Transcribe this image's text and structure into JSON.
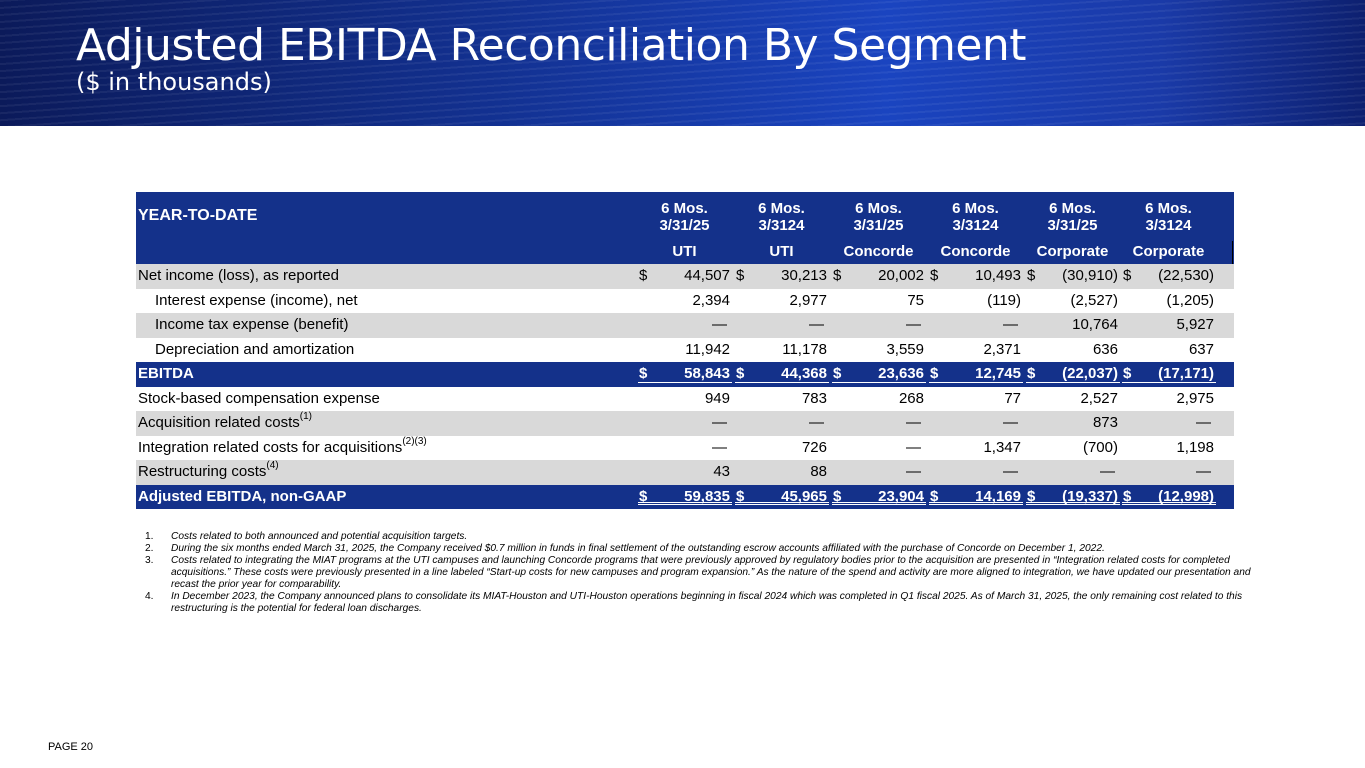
{
  "header": {
    "title": "Adjusted EBITDA Reconciliation By Segment",
    "subtitle": "($ in thousands)"
  },
  "table": {
    "section_label": "YEAR-TO-DATE",
    "columns": [
      {
        "period": "6 Mos.",
        "date": "3/31/25",
        "segment": "UTI"
      },
      {
        "period": "6 Mos.",
        "date": "3/3124",
        "segment": "UTI"
      },
      {
        "period": "6 Mos.",
        "date": "3/31/25",
        "segment": "Concorde"
      },
      {
        "period": "6 Mos.",
        "date": "3/3124",
        "segment": "Concorde"
      },
      {
        "period": "6 Mos.",
        "date": "3/31/25",
        "segment": "Corporate"
      },
      {
        "period": "6 Mos.",
        "date": "3/3124",
        "segment": "Corporate"
      }
    ],
    "rows": [
      {
        "label": "Net income (loss), as reported",
        "sup": "",
        "currency": "$",
        "values": [
          "44,507",
          "30,213",
          "20,002",
          "10,493",
          "(30,910)",
          "(22,530)"
        ]
      },
      {
        "label": "Interest expense (income), net",
        "sup": "",
        "currency": "",
        "values": [
          "2,394",
          "2,977",
          "75",
          "(119)",
          "(2,527)",
          "(1,205)"
        ]
      },
      {
        "label": "Income tax expense (benefit)",
        "sup": "",
        "currency": "",
        "values": [
          "—",
          "—",
          "—",
          "—",
          "10,764",
          "5,927"
        ]
      },
      {
        "label": "Depreciation and amortization",
        "sup": "",
        "currency": "",
        "values": [
          "11,942",
          "11,178",
          "3,559",
          "2,371",
          "636",
          "637"
        ]
      },
      {
        "label": "EBITDA",
        "sup": "",
        "currency": "$",
        "values": [
          "58,843",
          "44,368",
          "23,636",
          "12,745",
          "(22,037)",
          "(17,171)"
        ]
      },
      {
        "label": "Stock-based compensation expense",
        "sup": "",
        "currency": "",
        "values": [
          "949",
          "783",
          "268",
          "77",
          "2,527",
          "2,975"
        ]
      },
      {
        "label": "Acquisition related costs",
        "sup": "(1)",
        "currency": "",
        "values": [
          "—",
          "—",
          "—",
          "—",
          "873",
          "—"
        ]
      },
      {
        "label": "Integration related costs for acquisitions",
        "sup": "(2)(3)",
        "currency": "",
        "values": [
          "—",
          "726",
          "—",
          "1,347",
          "(700)",
          "1,198"
        ]
      },
      {
        "label": "Restructuring costs",
        "sup": "(4)",
        "currency": "",
        "values": [
          "43",
          "88",
          "—",
          "—",
          "—",
          "—"
        ]
      },
      {
        "label": "Adjusted EBITDA, non-GAAP",
        "sup": "",
        "currency": "$",
        "values": [
          "59,835",
          "45,965",
          "23,904",
          "14,169",
          "(19,337)",
          "(12,998)"
        ]
      }
    ]
  },
  "footnotes": [
    {
      "num": "1.",
      "text": "Costs related to both announced and potential acquisition targets."
    },
    {
      "num": "2.",
      "text": "During the six months ended March 31, 2025, the Company received $0.7 million in funds in final settlement of the outstanding escrow accounts affiliated with the purchase of Concorde on December 1, 2022."
    },
    {
      "num": "3.",
      "text": "Costs related to integrating the MIAT programs at the UTI campuses and launching Concorde programs that were previously approved by regulatory bodies prior to the acquisition are presented in “Integration related costs for completed acquisitions.” These costs were previously presented in a line labeled “Start-up costs for new campuses and program expansion.” As the nature of the spend and activity are more aligned to integration, we have updated our presentation and recast the prior year for comparability."
    },
    {
      "num": "4.",
      "text": "In December 2023, the Company announced plans to consolidate its MIAT-Houston and UTI-Houston operations beginning in fiscal 2024 which was completed in Q1 fiscal 2025. As of March 31, 2025, the only remaining cost related to this restructuring is the potential for federal loan discharges."
    }
  ],
  "footer": {
    "page": "PAGE 20"
  }
}
